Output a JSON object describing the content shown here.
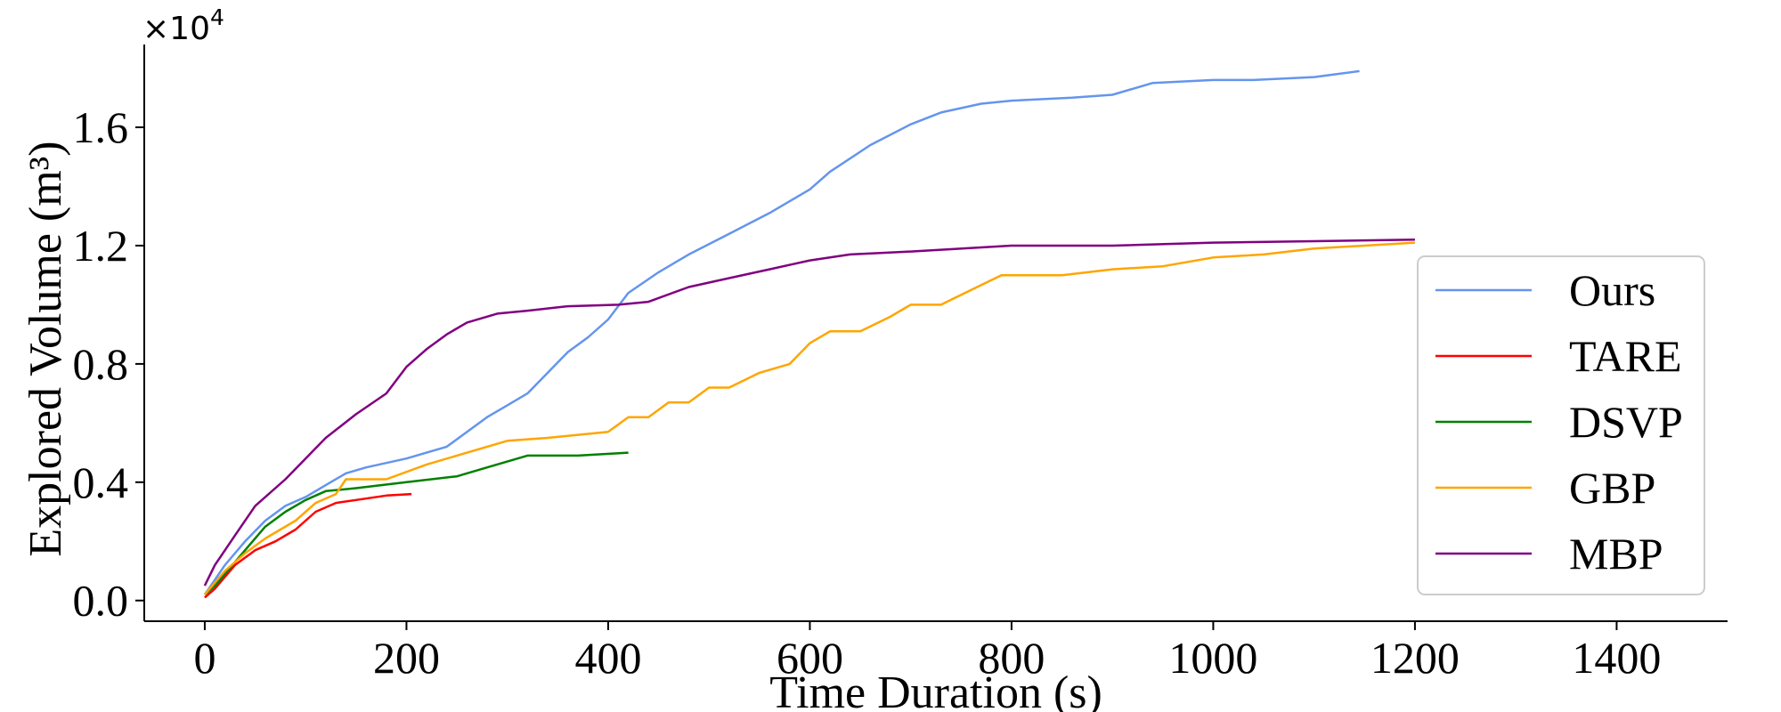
{
  "chart_data": {
    "type": "line",
    "title": "",
    "xlabel": "Time Duration (s)",
    "ylabel": "Explored Volume (m³)",
    "y_scale_label": "×10",
    "y_scale_exponent": "4",
    "xlim": [
      -60,
      1510
    ],
    "ylim": [
      -0.07,
      1.88
    ],
    "x_ticks": [
      0,
      200,
      400,
      600,
      800,
      1000,
      1200,
      1400
    ],
    "x_tick_labels": [
      "0",
      "200",
      "400",
      "600",
      "800",
      "1000",
      "1200",
      "1400"
    ],
    "y_ticks": [
      0.0,
      0.4,
      0.8,
      1.2,
      1.6
    ],
    "y_tick_labels": [
      "0.0",
      "0.4",
      "0.8",
      "1.2",
      "1.6"
    ],
    "grid": false,
    "legend_position": "lower-right",
    "series": [
      {
        "name": "Ours",
        "color": "#6495ED",
        "points": [
          [
            0,
            0.02
          ],
          [
            10,
            0.07
          ],
          [
            20,
            0.12
          ],
          [
            40,
            0.2
          ],
          [
            60,
            0.27
          ],
          [
            80,
            0.32
          ],
          [
            100,
            0.35
          ],
          [
            120,
            0.39
          ],
          [
            140,
            0.43
          ],
          [
            160,
            0.45
          ],
          [
            200,
            0.48
          ],
          [
            240,
            0.52
          ],
          [
            280,
            0.62
          ],
          [
            300,
            0.66
          ],
          [
            320,
            0.7
          ],
          [
            340,
            0.77
          ],
          [
            360,
            0.84
          ],
          [
            380,
            0.89
          ],
          [
            400,
            0.95
          ],
          [
            420,
            1.04
          ],
          [
            450,
            1.11
          ],
          [
            480,
            1.17
          ],
          [
            520,
            1.24
          ],
          [
            560,
            1.31
          ],
          [
            600,
            1.39
          ],
          [
            620,
            1.45
          ],
          [
            660,
            1.54
          ],
          [
            700,
            1.61
          ],
          [
            730,
            1.65
          ],
          [
            770,
            1.68
          ],
          [
            800,
            1.69
          ],
          [
            860,
            1.7
          ],
          [
            900,
            1.71
          ],
          [
            940,
            1.75
          ],
          [
            1000,
            1.76
          ],
          [
            1040,
            1.76
          ],
          [
            1100,
            1.77
          ],
          [
            1145,
            1.79
          ]
        ]
      },
      {
        "name": "TARE",
        "color": "#FF0000",
        "points": [
          [
            0,
            0.01
          ],
          [
            10,
            0.04
          ],
          [
            20,
            0.08
          ],
          [
            30,
            0.12
          ],
          [
            50,
            0.17
          ],
          [
            70,
            0.2
          ],
          [
            90,
            0.24
          ],
          [
            110,
            0.3
          ],
          [
            130,
            0.33
          ],
          [
            150,
            0.34
          ],
          [
            180,
            0.355
          ],
          [
            205,
            0.36
          ]
        ]
      },
      {
        "name": "DSVP",
        "color": "#008000",
        "points": [
          [
            0,
            0.02
          ],
          [
            10,
            0.05
          ],
          [
            20,
            0.09
          ],
          [
            40,
            0.17
          ],
          [
            60,
            0.25
          ],
          [
            80,
            0.3
          ],
          [
            100,
            0.34
          ],
          [
            120,
            0.37
          ],
          [
            150,
            0.38
          ],
          [
            200,
            0.4
          ],
          [
            250,
            0.42
          ],
          [
            280,
            0.45
          ],
          [
            320,
            0.49
          ],
          [
            370,
            0.49
          ],
          [
            420,
            0.5
          ]
        ]
      },
      {
        "name": "GBP",
        "color": "#FFA500",
        "points": [
          [
            0,
            0.02
          ],
          [
            20,
            0.1
          ],
          [
            40,
            0.16
          ],
          [
            60,
            0.21
          ],
          [
            90,
            0.27
          ],
          [
            110,
            0.33
          ],
          [
            130,
            0.36
          ],
          [
            140,
            0.41
          ],
          [
            180,
            0.41
          ],
          [
            220,
            0.46
          ],
          [
            260,
            0.5
          ],
          [
            300,
            0.54
          ],
          [
            340,
            0.55
          ],
          [
            400,
            0.57
          ],
          [
            420,
            0.62
          ],
          [
            440,
            0.62
          ],
          [
            460,
            0.67
          ],
          [
            480,
            0.67
          ],
          [
            500,
            0.72
          ],
          [
            520,
            0.72
          ],
          [
            550,
            0.77
          ],
          [
            580,
            0.8
          ],
          [
            600,
            0.87
          ],
          [
            620,
            0.91
          ],
          [
            650,
            0.91
          ],
          [
            680,
            0.96
          ],
          [
            700,
            1.0
          ],
          [
            730,
            1.0
          ],
          [
            760,
            1.05
          ],
          [
            790,
            1.1
          ],
          [
            850,
            1.1
          ],
          [
            900,
            1.12
          ],
          [
            950,
            1.13
          ],
          [
            1000,
            1.16
          ],
          [
            1050,
            1.17
          ],
          [
            1100,
            1.19
          ],
          [
            1150,
            1.2
          ],
          [
            1200,
            1.21
          ]
        ]
      },
      {
        "name": "MBP",
        "color": "#800080",
        "points": [
          [
            0,
            0.05
          ],
          [
            10,
            0.12
          ],
          [
            30,
            0.22
          ],
          [
            50,
            0.32
          ],
          [
            80,
            0.41
          ],
          [
            100,
            0.48
          ],
          [
            120,
            0.55
          ],
          [
            150,
            0.63
          ],
          [
            180,
            0.7
          ],
          [
            200,
            0.79
          ],
          [
            220,
            0.85
          ],
          [
            240,
            0.9
          ],
          [
            260,
            0.94
          ],
          [
            290,
            0.97
          ],
          [
            320,
            0.98
          ],
          [
            360,
            0.995
          ],
          [
            410,
            1.0
          ],
          [
            440,
            1.01
          ],
          [
            480,
            1.06
          ],
          [
            520,
            1.09
          ],
          [
            560,
            1.12
          ],
          [
            600,
            1.15
          ],
          [
            640,
            1.17
          ],
          [
            700,
            1.18
          ],
          [
            800,
            1.2
          ],
          [
            900,
            1.2
          ],
          [
            1000,
            1.21
          ],
          [
            1100,
            1.215
          ],
          [
            1200,
            1.22
          ]
        ]
      }
    ]
  }
}
